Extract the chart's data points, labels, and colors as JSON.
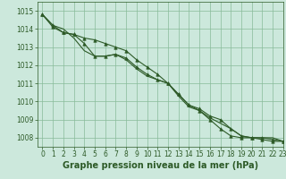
{
  "title": "Graphe pression niveau de la mer (hPa)",
  "background_color": "#cce8dc",
  "grid_color": "#88bb99",
  "line_color": "#2d5a27",
  "marker_color": "#2d5a27",
  "xlim": [
    -0.5,
    23
  ],
  "ylim": [
    1007.5,
    1015.5
  ],
  "yticks": [
    1008,
    1009,
    1010,
    1011,
    1012,
    1013,
    1014,
    1015
  ],
  "xticks": [
    0,
    1,
    2,
    3,
    4,
    5,
    6,
    7,
    8,
    9,
    10,
    11,
    12,
    13,
    14,
    15,
    16,
    17,
    18,
    19,
    20,
    21,
    22,
    23
  ],
  "series": [
    [
      1014.8,
      1014.2,
      1013.8,
      1013.7,
      1013.2,
      1012.5,
      1012.5,
      1012.6,
      1012.4,
      1011.9,
      1011.5,
      1011.2,
      1011.0,
      1010.4,
      1009.8,
      1009.6,
      1009.2,
      1009.0,
      1008.5,
      1008.1,
      1008.0,
      1008.0,
      1007.9,
      1007.8
    ],
    [
      1014.8,
      1014.2,
      1014.0,
      1013.5,
      1012.8,
      1012.5,
      1012.5,
      1012.6,
      1012.3,
      1011.8,
      1011.4,
      1011.2,
      1011.0,
      1010.3,
      1009.7,
      1009.5,
      1009.1,
      1008.8,
      1008.5,
      1008.1,
      1008.0,
      1008.0,
      1008.0,
      1007.8
    ],
    [
      1014.8,
      1014.1,
      1013.8,
      1013.7,
      1013.5,
      1013.4,
      1013.2,
      1013.0,
      1012.8,
      1012.3,
      1011.9,
      1011.5,
      1011.0,
      1010.4,
      1009.8,
      1009.5,
      1009.0,
      1008.5,
      1008.1,
      1008.0,
      1008.0,
      1007.9,
      1007.8,
      1007.8
    ]
  ],
  "marker_series": [
    0,
    2
  ],
  "marker_style": "^",
  "marker_size": 2.5,
  "line_width": 0.8,
  "title_fontsize": 7,
  "tick_fontsize": 5.5,
  "title_color": "#2d5a27",
  "tick_color": "#2d5a27"
}
